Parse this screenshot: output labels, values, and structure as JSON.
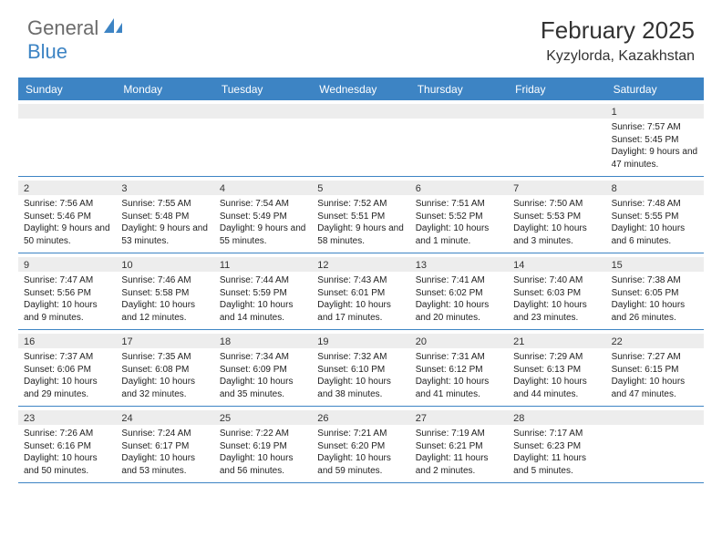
{
  "logo": {
    "text1": "General",
    "text2": "Blue"
  },
  "title": "February 2025",
  "location": "Kyzylorda, Kazakhstan",
  "colors": {
    "accent": "#3d84c4",
    "gray_row": "#ededed",
    "logo_gray": "#6b6b6b",
    "text": "#222222",
    "background": "#ffffff"
  },
  "fonts": {
    "title_size": 26,
    "location_size": 16,
    "dayhead_size": 12,
    "cell_size": 10
  },
  "day_names": [
    "Sunday",
    "Monday",
    "Tuesday",
    "Wednesday",
    "Thursday",
    "Friday",
    "Saturday"
  ],
  "weeks": [
    [
      {},
      {},
      {},
      {},
      {},
      {},
      {
        "n": "1",
        "sunrise": "Sunrise: 7:57 AM",
        "sunset": "Sunset: 5:45 PM",
        "day": "Daylight: 9 hours and 47 minutes."
      }
    ],
    [
      {
        "n": "2",
        "sunrise": "Sunrise: 7:56 AM",
        "sunset": "Sunset: 5:46 PM",
        "day": "Daylight: 9 hours and 50 minutes."
      },
      {
        "n": "3",
        "sunrise": "Sunrise: 7:55 AM",
        "sunset": "Sunset: 5:48 PM",
        "day": "Daylight: 9 hours and 53 minutes."
      },
      {
        "n": "4",
        "sunrise": "Sunrise: 7:54 AM",
        "sunset": "Sunset: 5:49 PM",
        "day": "Daylight: 9 hours and 55 minutes."
      },
      {
        "n": "5",
        "sunrise": "Sunrise: 7:52 AM",
        "sunset": "Sunset: 5:51 PM",
        "day": "Daylight: 9 hours and 58 minutes."
      },
      {
        "n": "6",
        "sunrise": "Sunrise: 7:51 AM",
        "sunset": "Sunset: 5:52 PM",
        "day": "Daylight: 10 hours and 1 minute."
      },
      {
        "n": "7",
        "sunrise": "Sunrise: 7:50 AM",
        "sunset": "Sunset: 5:53 PM",
        "day": "Daylight: 10 hours and 3 minutes."
      },
      {
        "n": "8",
        "sunrise": "Sunrise: 7:48 AM",
        "sunset": "Sunset: 5:55 PM",
        "day": "Daylight: 10 hours and 6 minutes."
      }
    ],
    [
      {
        "n": "9",
        "sunrise": "Sunrise: 7:47 AM",
        "sunset": "Sunset: 5:56 PM",
        "day": "Daylight: 10 hours and 9 minutes."
      },
      {
        "n": "10",
        "sunrise": "Sunrise: 7:46 AM",
        "sunset": "Sunset: 5:58 PM",
        "day": "Daylight: 10 hours and 12 minutes."
      },
      {
        "n": "11",
        "sunrise": "Sunrise: 7:44 AM",
        "sunset": "Sunset: 5:59 PM",
        "day": "Daylight: 10 hours and 14 minutes."
      },
      {
        "n": "12",
        "sunrise": "Sunrise: 7:43 AM",
        "sunset": "Sunset: 6:01 PM",
        "day": "Daylight: 10 hours and 17 minutes."
      },
      {
        "n": "13",
        "sunrise": "Sunrise: 7:41 AM",
        "sunset": "Sunset: 6:02 PM",
        "day": "Daylight: 10 hours and 20 minutes."
      },
      {
        "n": "14",
        "sunrise": "Sunrise: 7:40 AM",
        "sunset": "Sunset: 6:03 PM",
        "day": "Daylight: 10 hours and 23 minutes."
      },
      {
        "n": "15",
        "sunrise": "Sunrise: 7:38 AM",
        "sunset": "Sunset: 6:05 PM",
        "day": "Daylight: 10 hours and 26 minutes."
      }
    ],
    [
      {
        "n": "16",
        "sunrise": "Sunrise: 7:37 AM",
        "sunset": "Sunset: 6:06 PM",
        "day": "Daylight: 10 hours and 29 minutes."
      },
      {
        "n": "17",
        "sunrise": "Sunrise: 7:35 AM",
        "sunset": "Sunset: 6:08 PM",
        "day": "Daylight: 10 hours and 32 minutes."
      },
      {
        "n": "18",
        "sunrise": "Sunrise: 7:34 AM",
        "sunset": "Sunset: 6:09 PM",
        "day": "Daylight: 10 hours and 35 minutes."
      },
      {
        "n": "19",
        "sunrise": "Sunrise: 7:32 AM",
        "sunset": "Sunset: 6:10 PM",
        "day": "Daylight: 10 hours and 38 minutes."
      },
      {
        "n": "20",
        "sunrise": "Sunrise: 7:31 AM",
        "sunset": "Sunset: 6:12 PM",
        "day": "Daylight: 10 hours and 41 minutes."
      },
      {
        "n": "21",
        "sunrise": "Sunrise: 7:29 AM",
        "sunset": "Sunset: 6:13 PM",
        "day": "Daylight: 10 hours and 44 minutes."
      },
      {
        "n": "22",
        "sunrise": "Sunrise: 7:27 AM",
        "sunset": "Sunset: 6:15 PM",
        "day": "Daylight: 10 hours and 47 minutes."
      }
    ],
    [
      {
        "n": "23",
        "sunrise": "Sunrise: 7:26 AM",
        "sunset": "Sunset: 6:16 PM",
        "day": "Daylight: 10 hours and 50 minutes."
      },
      {
        "n": "24",
        "sunrise": "Sunrise: 7:24 AM",
        "sunset": "Sunset: 6:17 PM",
        "day": "Daylight: 10 hours and 53 minutes."
      },
      {
        "n": "25",
        "sunrise": "Sunrise: 7:22 AM",
        "sunset": "Sunset: 6:19 PM",
        "day": "Daylight: 10 hours and 56 minutes."
      },
      {
        "n": "26",
        "sunrise": "Sunrise: 7:21 AM",
        "sunset": "Sunset: 6:20 PM",
        "day": "Daylight: 10 hours and 59 minutes."
      },
      {
        "n": "27",
        "sunrise": "Sunrise: 7:19 AM",
        "sunset": "Sunset: 6:21 PM",
        "day": "Daylight: 11 hours and 2 minutes."
      },
      {
        "n": "28",
        "sunrise": "Sunrise: 7:17 AM",
        "sunset": "Sunset: 6:23 PM",
        "day": "Daylight: 11 hours and 5 minutes."
      },
      {}
    ]
  ]
}
